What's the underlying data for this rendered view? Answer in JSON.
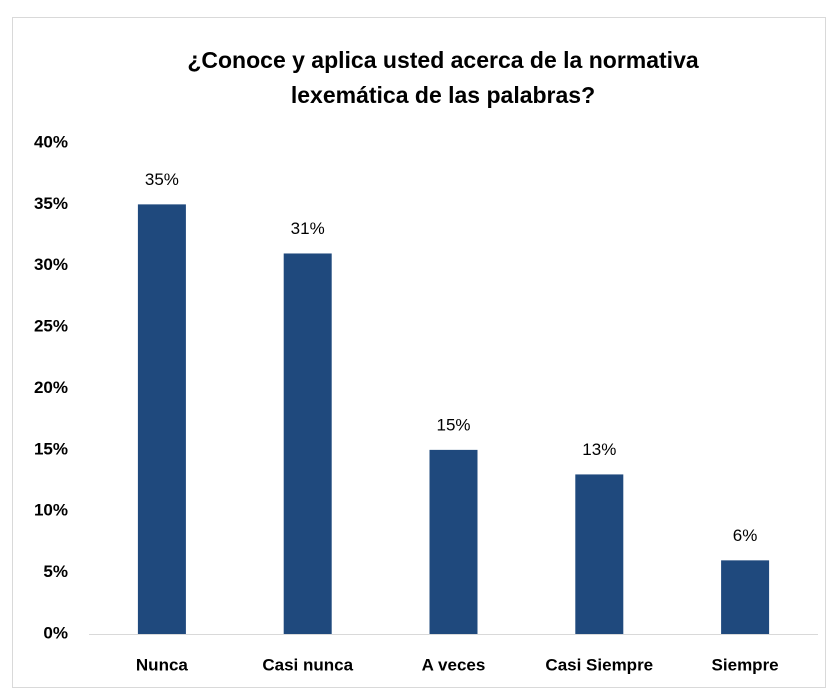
{
  "chart_data": {
    "type": "bar",
    "title": [
      "¿Conoce y aplica usted acerca de la normativa",
      "lexemática de las palabras?"
    ],
    "categories": [
      "Nunca",
      "Casi nunca",
      "A veces",
      "Casi Siempre",
      "Siempre"
    ],
    "values": [
      35,
      31,
      15,
      13,
      6
    ],
    "value_labels": [
      "35%",
      "31%",
      "15%",
      "13%",
      "6%"
    ],
    "color": "#1f497d",
    "ylim": [
      0,
      40
    ],
    "yticks": [
      {
        "value": 0,
        "label": "0%"
      },
      {
        "value": 5,
        "label": "5%"
      },
      {
        "value": 10,
        "label": "10%"
      },
      {
        "value": 15,
        "label": "15%"
      },
      {
        "value": 20,
        "label": "20%"
      },
      {
        "value": 25,
        "label": "25%"
      },
      {
        "value": 30,
        "label": "30%"
      },
      {
        "value": 35,
        "label": "35%"
      },
      {
        "value": 40,
        "label": "40%"
      }
    ],
    "grid": false
  }
}
